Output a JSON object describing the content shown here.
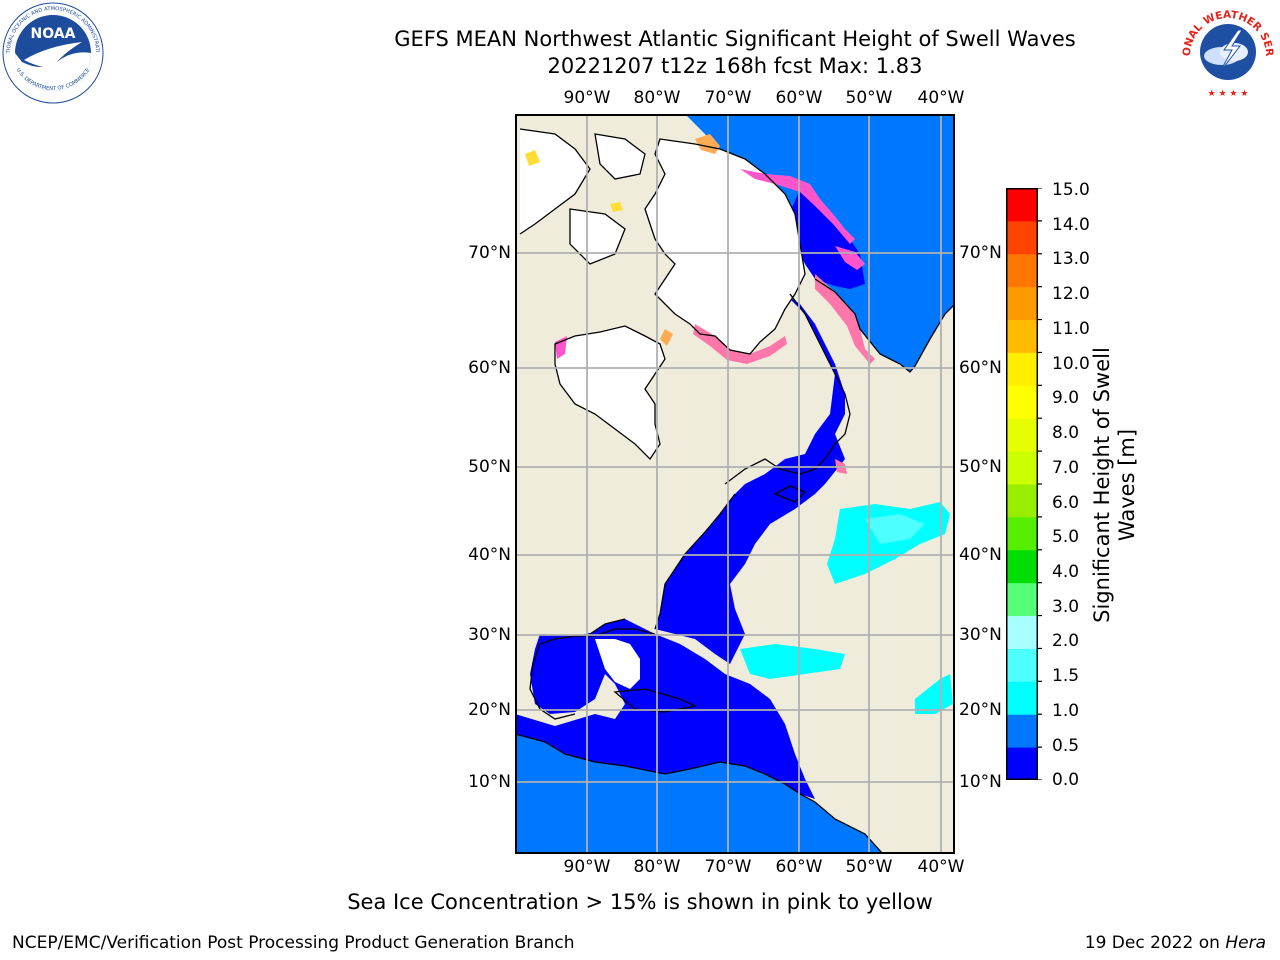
{
  "header": {
    "title_line1": "GEFS MEAN Northwest Atlantic Significant Height of Swell Waves",
    "title_line2": "20221207 t12z 168h fcst   Max: 1.83",
    "left_logo": {
      "name": "NOAA",
      "ring_text": "NATIONAL OCEANIC AND ATMOSPHERIC ADMINISTRATION",
      "bottom_text": "U.S. DEPARTMENT OF COMMERCE",
      "color": "#1d4c9c"
    },
    "right_logo": {
      "ring_text": "NATIONAL WEATHER SERVICE",
      "ring_color": "#e2231a",
      "disc_color": "#1f4fa3"
    }
  },
  "map": {
    "lon_labels": [
      "90°W",
      "80°W",
      "70°W",
      "60°W",
      "50°W",
      "40°W"
    ],
    "lat_labels": [
      "70°N",
      "60°N",
      "50°N",
      "40°N",
      "30°N",
      "20°N",
      "10°N"
    ],
    "land_color": "#efecdc",
    "ice_free_white": "#ffffff",
    "sea_colors": {
      "dark_blue": "#0000ff",
      "mid_blue": "#0077ff",
      "cyan": "#00ffff",
      "light_cyan": "#4dffff"
    },
    "ice_colors": [
      "#ff55cc",
      "#ff77aa",
      "#ffaa55",
      "#ffdd33"
    ]
  },
  "colorbar": {
    "label": "Significant Height of Swell Waves [m]",
    "ticks": [
      "15.0",
      "14.0",
      "13.0",
      "12.0",
      "11.0",
      "10.0",
      "9.0",
      "8.0",
      "7.0",
      "6.0",
      "5.0",
      "4.0",
      "3.0",
      "2.0",
      "1.5",
      "1.0",
      "0.5",
      "0.0"
    ],
    "colors_bottom_to_top": [
      "#0000ff",
      "#0077ff",
      "#00ffff",
      "#4dffff",
      "#a8ffff",
      "#55ff77",
      "#00dd00",
      "#55ee00",
      "#99ee00",
      "#ccff00",
      "#e6ff00",
      "#ffff00",
      "#ffee00",
      "#ffbb00",
      "#ff9900",
      "#ff7700",
      "#ff4400",
      "#ff0000"
    ]
  },
  "footer": {
    "note": "Sea Ice Concentration > 15% is shown in pink to yellow",
    "credit": "NCEP/EMC/Verification Post Processing Product Generation Branch",
    "date": "19 Dec 2022 on",
    "machine": "Hera"
  }
}
